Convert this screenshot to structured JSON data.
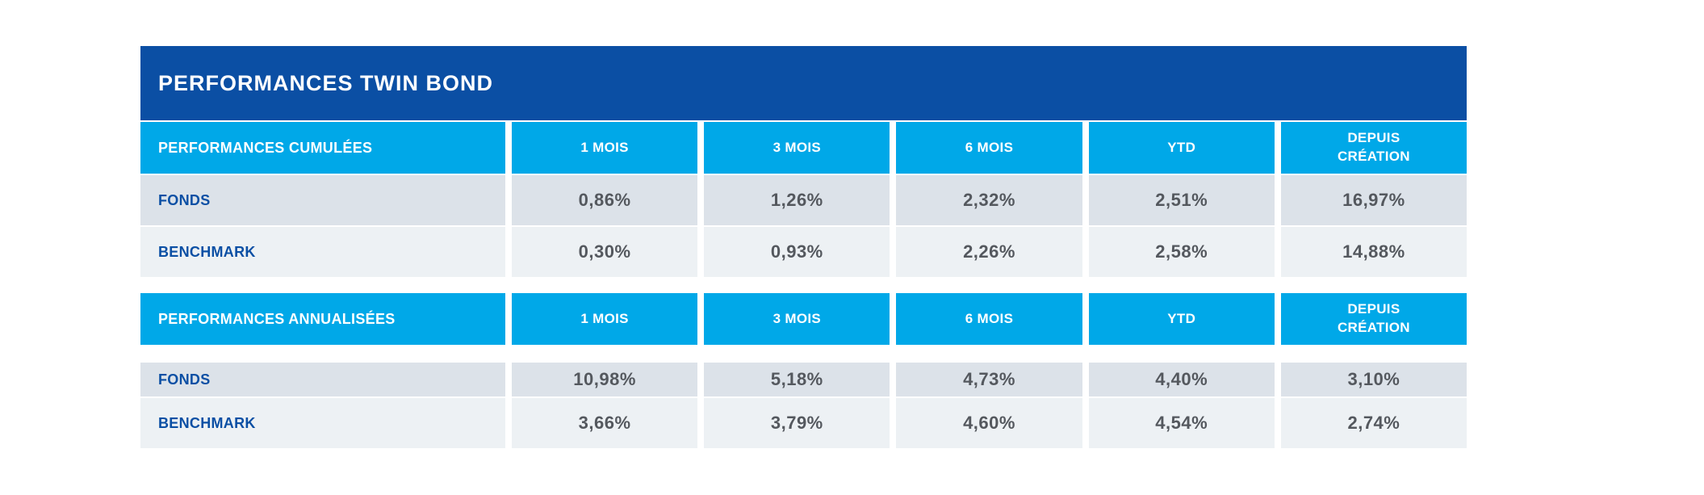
{
  "title": "PERFORMANCES TWIN BOND",
  "colors": {
    "title_bar_bg": "#0b4fa4",
    "header_cell_bg": "#00a8e8",
    "row_fonds_bg": "#dce2e9",
    "row_benchmark_bg": "#edf1f4",
    "label_text": "#0b4fa4",
    "value_text": "#54585e",
    "header_text": "#ffffff"
  },
  "sections": [
    {
      "label": "PERFORMANCES CUMULÉES",
      "columns": [
        "1 MOIS",
        "3 MOIS",
        "6 MOIS",
        "YTD",
        "DEPUIS\nCRÉATION"
      ],
      "rows": [
        {
          "label": "FONDS",
          "values": [
            "0,86%",
            "1,26%",
            "2,32%",
            "2,51%",
            "16,97%"
          ]
        },
        {
          "label": "BENCHMARK",
          "values": [
            "0,30%",
            "0,93%",
            "2,26%",
            "2,58%",
            "14,88%"
          ]
        }
      ]
    },
    {
      "label": "PERFORMANCES ANNUALISÉES",
      "columns": [
        "1 MOIS",
        "3 MOIS",
        "6 MOIS",
        "YTD",
        "DEPUIS\nCRÉATION"
      ],
      "rows": [
        {
          "label": "FONDS",
          "values": [
            "10,98%",
            "5,18%",
            "4,73%",
            "4,40%",
            "3,10%"
          ]
        },
        {
          "label": "BENCHMARK",
          "values": [
            "3,66%",
            "3,79%",
            "4,60%",
            "4,54%",
            "2,74%"
          ]
        }
      ]
    }
  ]
}
